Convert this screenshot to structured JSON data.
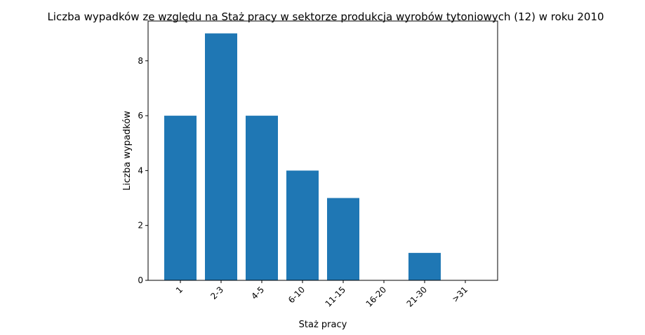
{
  "chart_data": {
    "type": "bar",
    "title": "Liczba wypadków ze względu na Staż pracy w sektorze produkcja wyrobów tytoniowych  (12)   w roku 2010",
    "xlabel": "Staż pracy",
    "ylabel": "Liczba wypadków",
    "categories": [
      "1",
      "2-3",
      "4-5",
      "6-10",
      "11-15",
      "16-20",
      "21-30",
      ">31"
    ],
    "values": [
      6,
      9,
      6,
      4,
      3,
      0,
      1,
      0
    ],
    "ylim": [
      0,
      9.45
    ],
    "yticks": [
      0,
      2,
      4,
      6,
      8
    ],
    "grid": false,
    "bar_color": "#1f77b4"
  }
}
